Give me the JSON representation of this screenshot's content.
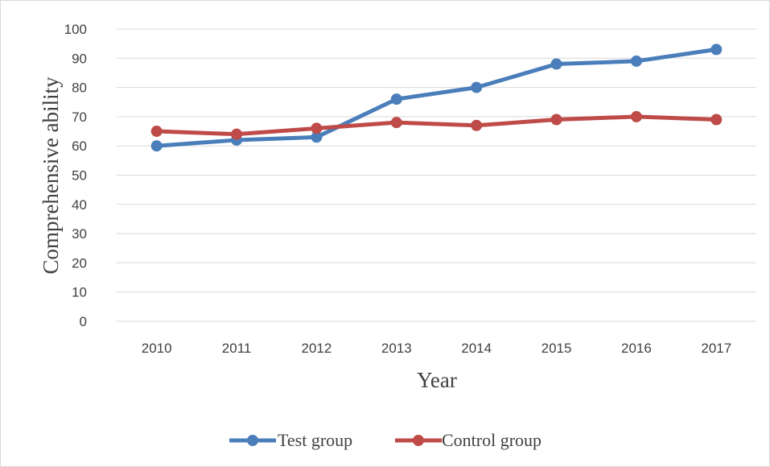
{
  "caption_fragment": "",
  "chart_data": {
    "type": "line",
    "xlabel": "Year",
    "ylabel": "Comprehensive ability",
    "categories": [
      "2010",
      "2011",
      "2012",
      "2013",
      "2014",
      "2015",
      "2016",
      "2017"
    ],
    "ylim": [
      0,
      100
    ],
    "yticks": [
      "0",
      "10",
      "20",
      "30",
      "40",
      "50",
      "60",
      "70",
      "80",
      "90",
      "100"
    ],
    "grid": true,
    "legend_position": "bottom",
    "series": [
      {
        "name": "Test group",
        "color": "#4a7ebb",
        "values": [
          60,
          62,
          63,
          76,
          80,
          88,
          89,
          93
        ]
      },
      {
        "name": "Control group",
        "color": "#be4b48",
        "values": [
          65,
          64,
          66,
          68,
          67,
          69,
          70,
          69
        ]
      }
    ]
  }
}
